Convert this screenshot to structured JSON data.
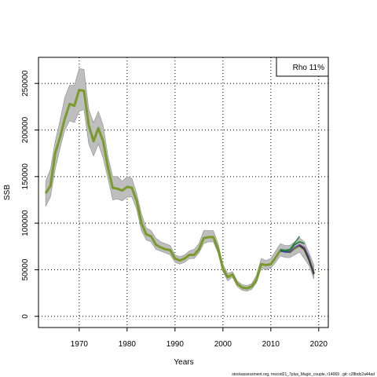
{
  "chart_data": {
    "type": "line",
    "xlabel": "Years",
    "ylabel": "SSB",
    "xlim": [
      1961.5,
      2022
    ],
    "ylim": [
      -12000,
      278000
    ],
    "x_ticks": [
      1970,
      1980,
      1990,
      2000,
      2010,
      2020
    ],
    "y_ticks": [
      0,
      50000,
      100000,
      150000,
      200000,
      250000
    ],
    "grid": true,
    "legend": {
      "text": "Rho 11%",
      "placement": "top-right"
    },
    "footer": "stockassessment.org, mscod21_7plus_Magic_couple, r14069 , git: c28bdc2a44ad",
    "colors": {
      "band": "#bebebe",
      "main": "#7a9a2a",
      "peel_1": "#2e8b57",
      "peel_2": "#1e7b30",
      "peel_3": "#3a3f9a",
      "peel_4": "#7e4ea0",
      "peel_5": "#333333"
    },
    "confidence_band": {
      "x": [
        1963,
        1964,
        1965,
        1966,
        1967,
        1968,
        1969,
        1970,
        1971,
        1972,
        1973,
        1974,
        1975,
        1976,
        1977,
        1978,
        1979,
        1980,
        1981,
        1982,
        1983,
        1984,
        1985,
        1986,
        1987,
        1988,
        1989,
        1990,
        1991,
        1992,
        1993,
        1994,
        1995,
        1996,
        1997,
        1998,
        1999,
        2000,
        2001,
        2002,
        2003,
        2004,
        2005,
        2006,
        2007,
        2008,
        2009,
        2010,
        2011,
        2012,
        2013,
        2014,
        2015,
        2016,
        2017,
        2018,
        2019
      ],
      "lower": [
        118000,
        128000,
        158000,
        180000,
        200000,
        210000,
        208000,
        220000,
        222000,
        185000,
        172000,
        185000,
        170000,
        148000,
        125000,
        126000,
        124000,
        128000,
        128000,
        115000,
        92000,
        82000,
        80000,
        72000,
        70000,
        68000,
        66000,
        58000,
        56000,
        58000,
        62000,
        62000,
        68000,
        78000,
        80000,
        80000,
        68000,
        48000,
        38000,
        42000,
        32000,
        28000,
        27000,
        29000,
        36000,
        52000,
        50000,
        52000,
        58000,
        65000,
        63000,
        63000,
        66000,
        69000,
        62000,
        54000,
        40000
      ],
      "upper": [
        145000,
        158000,
        188000,
        210000,
        235000,
        248000,
        248000,
        266000,
        265000,
        222000,
        208000,
        220000,
        205000,
        172000,
        150000,
        150000,
        145000,
        150000,
        148000,
        132000,
        110000,
        95000,
        92000,
        84000,
        80000,
        78000,
        76000,
        66000,
        64000,
        66000,
        70000,
        72000,
        78000,
        92000,
        92000,
        92000,
        78000,
        56000,
        46000,
        48000,
        38000,
        34000,
        33000,
        35000,
        44000,
        62000,
        60000,
        62000,
        70000,
        78000,
        76000,
        76000,
        80000,
        84000,
        80000,
        68000,
        55000
      ]
    },
    "series": [
      {
        "x": [
          1963,
          1964,
          1965,
          1966,
          1967,
          1968,
          1969,
          1970,
          1971,
          1972,
          1973,
          1974,
          1975,
          1976,
          1977,
          1978,
          1979,
          1980,
          1981,
          1982,
          1983,
          1984,
          1985,
          1986,
          1987,
          1988,
          1989,
          1990,
          1991,
          1992,
          1993,
          1994,
          1995,
          1996,
          1997,
          1998,
          1999,
          2000,
          2001,
          2002,
          2003,
          2004,
          2005,
          2006,
          2007,
          2008,
          2009,
          2010,
          2011,
          2012,
          2013,
          2014,
          2015,
          2016,
          2017,
          2018,
          2019
        ],
        "values": [
          132000,
          140000,
          175000,
          192000,
          212000,
          228000,
          226000,
          243000,
          242000,
          205000,
          188000,
          202000,
          188000,
          160000,
          138000,
          137000,
          135000,
          139000,
          138000,
          124000,
          100000,
          88000,
          86000,
          77000,
          74000,
          72000,
          71000,
          62000,
          60000,
          62000,
          66000,
          66000,
          72000,
          84000,
          85000,
          85000,
          72000,
          51000,
          42000,
          45000,
          35000,
          31000,
          30000,
          32000,
          39000,
          56000,
          55000,
          56000,
          63000,
          71000,
          70000,
          69000,
          73000,
          76000,
          72000,
          61000,
          46000
        ],
        "color_key": "main"
      },
      {
        "x": [
          2012,
          2013,
          2014,
          2015,
          2016
        ],
        "values": [
          72000,
          71000,
          72000,
          79000,
          86000
        ],
        "color_key": "peel_1"
      },
      {
        "x": [
          2012,
          2013,
          2014,
          2015,
          2016,
          2017
        ],
        "values": [
          71000,
          70000,
          71000,
          77000,
          80000,
          78000
        ],
        "color_key": "peel_2"
      },
      {
        "x": [
          2012,
          2013,
          2014,
          2015,
          2016,
          2017,
          2018
        ],
        "values": [
          70000,
          69000,
          69000,
          74000,
          76000,
          74000,
          63000
        ],
        "color_key": "peel_3"
      },
      {
        "x": [
          2014,
          2015,
          2016,
          2017,
          2018,
          2019
        ],
        "values": [
          70000,
          74000,
          77000,
          74000,
          62000,
          47000
        ],
        "color_key": "peel_4"
      },
      {
        "x": [
          2016,
          2017,
          2018,
          2019
        ],
        "values": [
          76000,
          72000,
          60000,
          45000
        ],
        "color_key": "peel_5"
      }
    ]
  }
}
